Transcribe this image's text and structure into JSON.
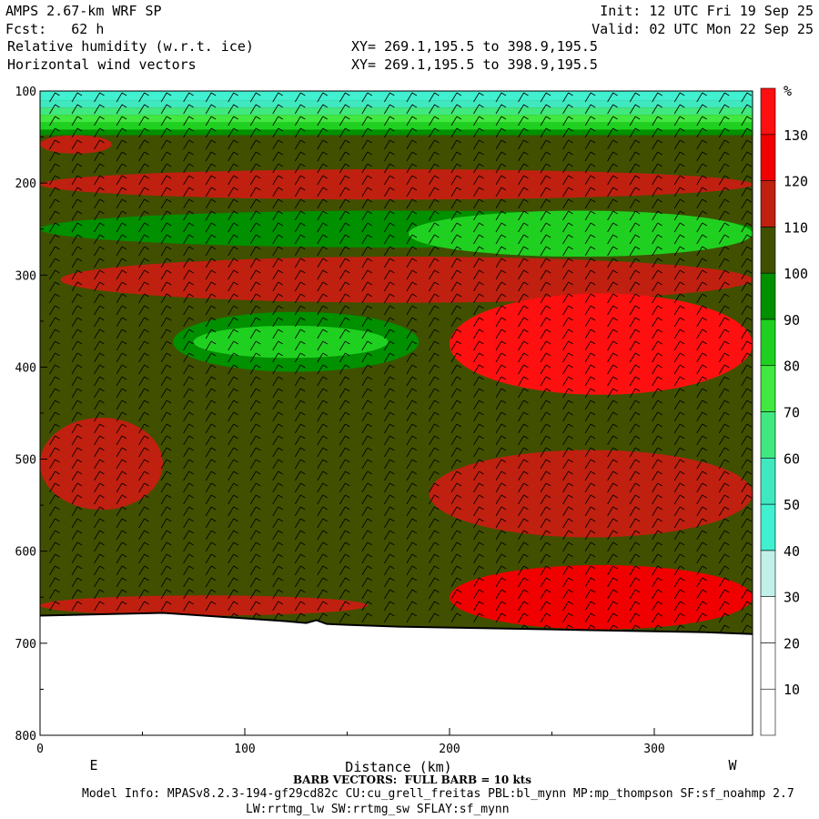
{
  "header": {
    "line1_left": "AMPS 2.67-km WRF SP",
    "line2_left": "Fcst:   62 h",
    "line3_left": "Relative humidity (w.r.t. ice)",
    "line4_left": "Horizontal wind vectors",
    "line1_right": "Init: 12 UTC Fri 19 Sep 25",
    "line2_right": "Valid: 02 UTC Mon 22 Sep 25",
    "line3_mid": "XY= 269.1,195.5 to 398.9,195.5",
    "line4_mid": "XY= 269.1,195.5 to 398.9,195.5"
  },
  "footer": {
    "barb_note": "BARB VECTORS:  FULL BARB = 10 kts",
    "model_info": "Model Info: MPASv8.2.3-194-gf29cd82c CU:cu_grell_freitas PBL:bl_mynn MP:mp_thompson SF:sf_noahmp 2.7",
    "model_info2": "LW:rrtmg_lw SW:rrtmg_sw SFLAY:sf_mynn"
  },
  "chart_data": {
    "type": "heatmap",
    "xlabel": "Distance (km)",
    "ylabel": "",
    "x_tick_labels": [
      "0",
      "100",
      "200",
      "300"
    ],
    "x_ticks": [
      0,
      100,
      200,
      300
    ],
    "xlim": [
      0,
      348
    ],
    "y_tick_labels": [
      "100",
      "200",
      "300",
      "400",
      "500",
      "600",
      "700",
      "800"
    ],
    "y_ticks": [
      100,
      200,
      300,
      400,
      500,
      600,
      700,
      800
    ],
    "ylim": [
      100,
      800
    ],
    "x_end_labels": {
      "left": "E",
      "right": "W"
    },
    "colorbar": {
      "unit": "%",
      "levels": [
        10,
        20,
        30,
        40,
        50,
        60,
        70,
        80,
        90,
        100,
        110,
        120,
        130
      ],
      "level_labels": [
        "10",
        "20",
        "30",
        "40",
        "50",
        "60",
        "70",
        "80",
        "90",
        "100",
        "110",
        "120",
        "130"
      ],
      "colors": [
        "#ffffff",
        "#ffffff",
        "#ffffff",
        "#c0f0e8",
        "#40f0d0",
        "#40e8c0",
        "#40e880",
        "#40e840",
        "#20d020",
        "#009000",
        "#405000",
        "#c02010",
        "#f00000",
        "#ff1010"
      ]
    },
    "terrain_pressure": [
      [
        0,
        670
      ],
      [
        20,
        669
      ],
      [
        40,
        668
      ],
      [
        60,
        667
      ],
      [
        80,
        670
      ],
      [
        100,
        673
      ],
      [
        120,
        676
      ],
      [
        130,
        678
      ],
      [
        135,
        675
      ],
      [
        140,
        679
      ],
      [
        150,
        680
      ],
      [
        175,
        682
      ],
      [
        200,
        683
      ],
      [
        225,
        684
      ],
      [
        250,
        685
      ],
      [
        275,
        686
      ],
      [
        300,
        687
      ],
      [
        325,
        688
      ],
      [
        348,
        690
      ]
    ],
    "rh_layers": [
      {
        "name": "moist-top-band",
        "top": 100,
        "bottom": 140,
        "value": 40
      },
      {
        "name": "red-band-160",
        "x": [
          0,
          35
        ],
        "top": 148,
        "bottom": 168,
        "value": 115
      },
      {
        "name": "red-band-200",
        "x": [
          0,
          348
        ],
        "top": 185,
        "bottom": 218,
        "value": 115
      },
      {
        "name": "green-band-250",
        "x": [
          0,
          348
        ],
        "top": 230,
        "bottom": 270,
        "value": 95
      },
      {
        "name": "light-green-250",
        "x": [
          180,
          348
        ],
        "top": 230,
        "bottom": 280,
        "value": 80
      },
      {
        "name": "red-band-300",
        "x": [
          10,
          348
        ],
        "top": 280,
        "bottom": 330,
        "value": 115
      },
      {
        "name": "bright-red-350",
        "x": [
          200,
          348
        ],
        "top": 320,
        "bottom": 430,
        "value": 130
      },
      {
        "name": "green-370",
        "x": [
          65,
          185
        ],
        "top": 340,
        "bottom": 405,
        "value": 90
      },
      {
        "name": "light-green-370",
        "x": [
          75,
          170
        ],
        "top": 355,
        "bottom": 390,
        "value": 80
      },
      {
        "name": "red-480",
        "x": [
          0,
          60
        ],
        "top": 455,
        "bottom": 555,
        "value": 115
      },
      {
        "name": "red-540",
        "x": [
          190,
          348
        ],
        "top": 490,
        "bottom": 585,
        "value": 115
      },
      {
        "name": "red-630",
        "x": [
          200,
          348
        ],
        "top": 615,
        "bottom": 685,
        "value": 125
      },
      {
        "name": "red-660",
        "x": [
          0,
          160
        ],
        "top": 648,
        "bottom": 670,
        "value": 115
      }
    ]
  }
}
